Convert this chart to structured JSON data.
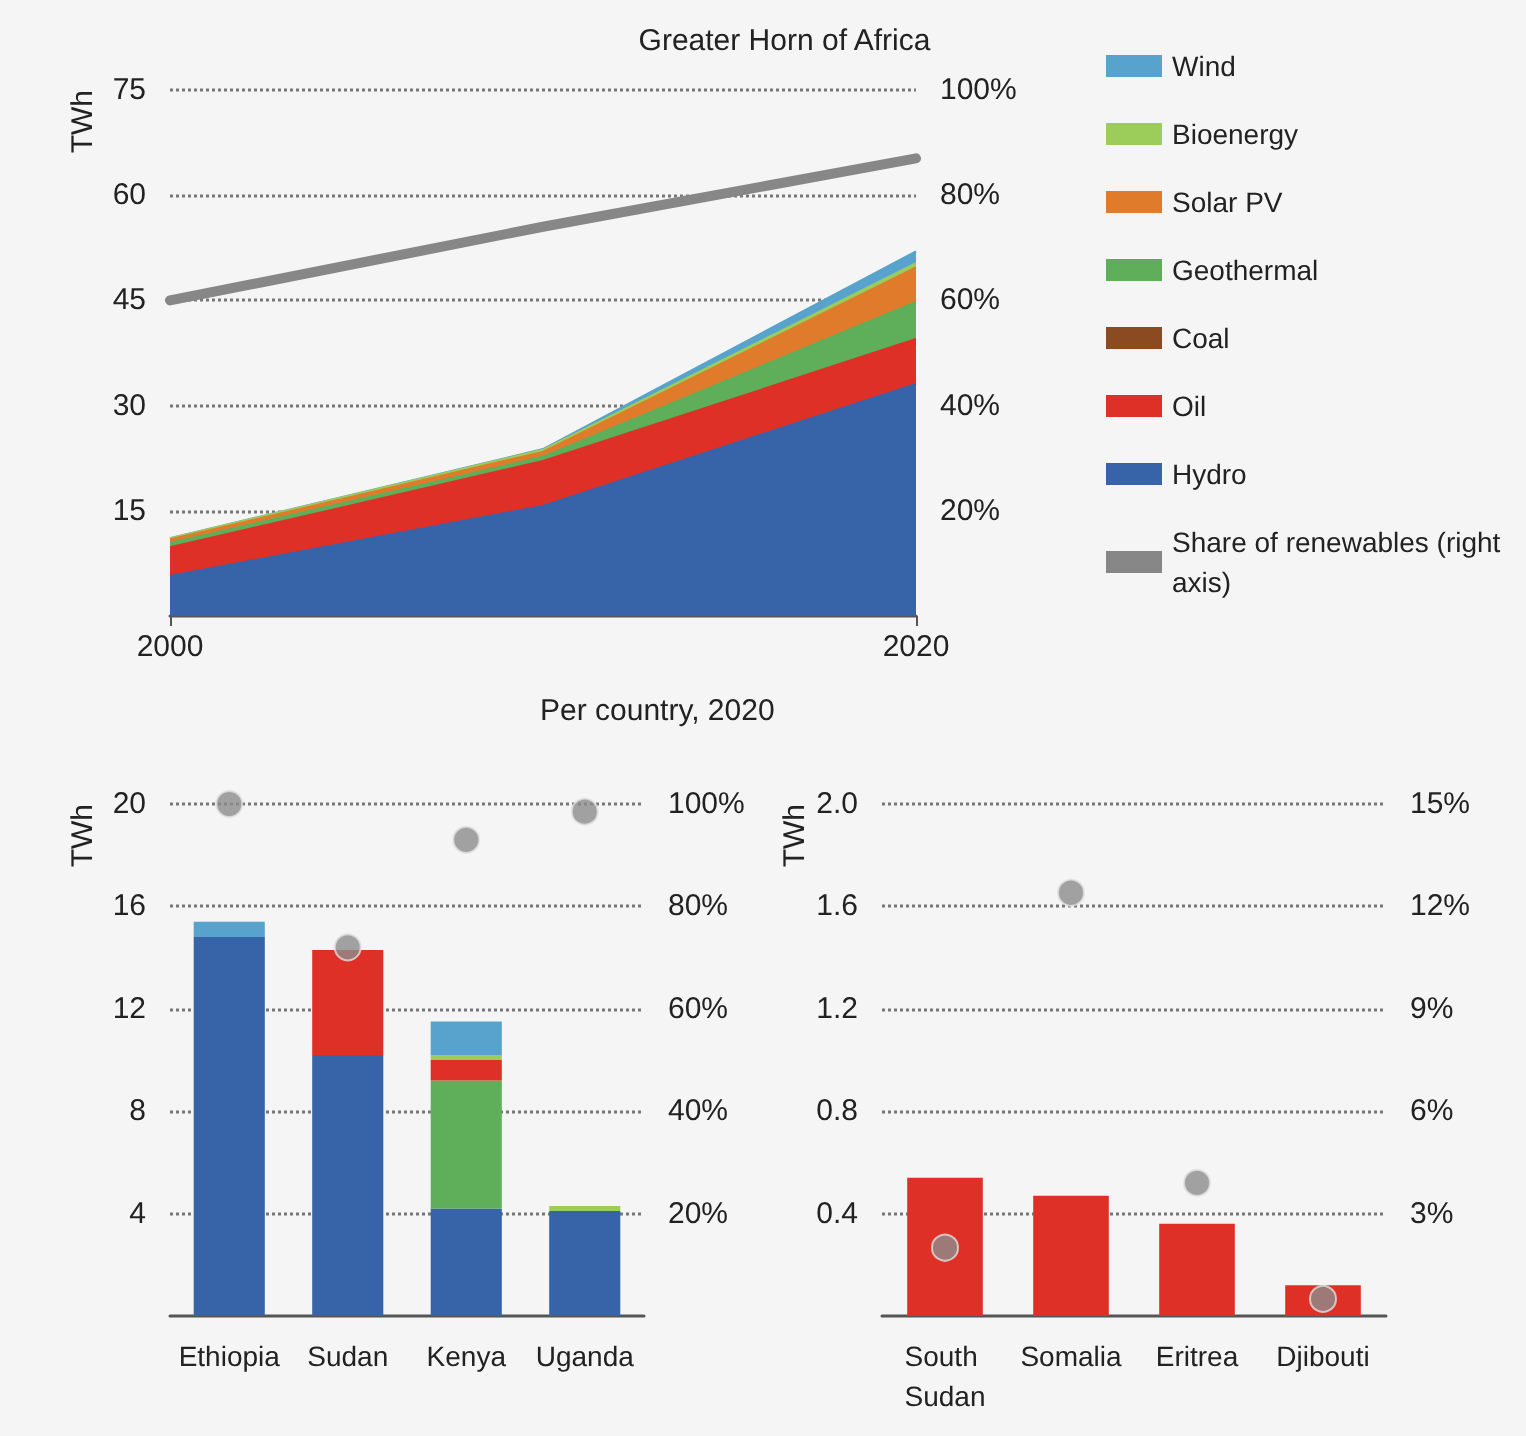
{
  "chart_data": [
    {
      "type": "area",
      "title": "Greater Horn of Africa",
      "ylabel": "TWh",
      "stacked": true,
      "x": [
        2000,
        2010,
        2020
      ],
      "xlim": [
        2000,
        2020
      ],
      "xticks": [
        2000,
        2020
      ],
      "ylim": [
        0,
        75
      ],
      "yticks": [
        15,
        30,
        45,
        60,
        75
      ],
      "y2lim": [
        0,
        100
      ],
      "y2ticks": [
        {
          "value": 20,
          "label": "20%"
        },
        {
          "value": 40,
          "label": "40%"
        },
        {
          "value": 60,
          "label": "60%"
        },
        {
          "value": 80,
          "label": "80%"
        },
        {
          "value": 100,
          "label": "100%"
        }
      ],
      "grid": "y",
      "legend": "right",
      "series": [
        {
          "name": "Hydro",
          "color": "#3764a8",
          "values": [
            5.7,
            15.7,
            33.1
          ]
        },
        {
          "name": "Oil",
          "color": "#de3026",
          "values": [
            4.1,
            6.4,
            6.4
          ]
        },
        {
          "name": "Coal",
          "color": "#8c4a20",
          "values": [
            null,
            null,
            null
          ]
        },
        {
          "name": "Geothermal",
          "color": "#5fae5a",
          "values": [
            0.6,
            0.6,
            5.3
          ]
        },
        {
          "name": "Solar PV",
          "color": "#e07b2c",
          "values": [
            0.5,
            0.7,
            4.9
          ]
        },
        {
          "name": "Bioenergy",
          "color": "#9ccc5a",
          "values": [
            0.2,
            0.3,
            0.6
          ]
        },
        {
          "name": "Wind",
          "color": "#57a3cd",
          "values": [
            0,
            0.1,
            1.7
          ]
        },
        {
          "name": "Share of renewables (right axis)",
          "type": "line",
          "axis": "y2",
          "color": "#878787",
          "values": [
            60,
            74,
            87
          ]
        }
      ]
    },
    {
      "type": "bar",
      "title": "Per country, 2020",
      "ylabel": "TWh",
      "stacked": true,
      "categories": [
        "Ethiopia",
        "Sudan",
        "Kenya",
        "Uganda"
      ],
      "ylim": [
        0,
        20
      ],
      "yticks": [
        4,
        8,
        12,
        16,
        20
      ],
      "y2lim": [
        0,
        100
      ],
      "y2ticks": [
        {
          "value": 20,
          "label": "20%"
        },
        {
          "value": 40,
          "label": "40%"
        },
        {
          "value": 60,
          "label": "60%"
        },
        {
          "value": 80,
          "label": "80%"
        },
        {
          "value": 100,
          "label": "100%"
        }
      ],
      "grid": "y",
      "marker": "circle",
      "series": [
        {
          "color": "#3764a8",
          "values": [
            14.8,
            10.2,
            4.2,
            4.1
          ]
        },
        {
          "color": "#5fae5a",
          "values": [
            null,
            null,
            5.0,
            null
          ]
        },
        {
          "color": "#de3026",
          "values": [
            null,
            4.1,
            0.8,
            null
          ]
        },
        {
          "color": "#9ccc5a",
          "values": [
            null,
            null,
            0.2,
            0.2
          ]
        },
        {
          "color": "#57a3cd",
          "values": [
            0.6,
            null,
            1.3,
            null
          ]
        },
        {
          "type": "scatter",
          "axis": "y2",
          "color": "#8c8c8c",
          "x": [
            "Ethiopia",
            "Sudan",
            "Kenya",
            "Uganda"
          ],
          "values": [
            100,
            72,
            93,
            98.5
          ]
        }
      ]
    },
    {
      "type": "bar",
      "ylabel": "TWh",
      "categories": [
        "South Sudan",
        "Somalia",
        "Eritrea",
        "Djibouti"
      ],
      "ylim": [
        0,
        2
      ],
      "yticks": [
        0.4,
        0.8,
        1.2,
        1.6,
        {
          "value": 2,
          "label": "2.0"
        }
      ],
      "y2lim": [
        0,
        15
      ],
      "y2ticks": [
        {
          "value": 3,
          "label": "3%"
        },
        {
          "value": 6,
          "label": "6%"
        },
        {
          "value": 9,
          "label": "9%"
        },
        {
          "value": 12,
          "label": "12%"
        },
        {
          "value": 15,
          "label": "15%"
        }
      ],
      "grid": "y",
      "marker": "circle",
      "series": [
        {
          "color": "#de3026",
          "values": [
            0.54,
            0.47,
            0.36,
            0.12
          ]
        },
        {
          "type": "scatter",
          "axis": "y2",
          "color": "#8c8c8c",
          "x": [
            "South Sudan",
            "Somalia",
            "Eritrea",
            "Djibouti"
          ],
          "values": [
            2,
            12.4,
            3.9,
            0.5
          ]
        }
      ]
    }
  ]
}
